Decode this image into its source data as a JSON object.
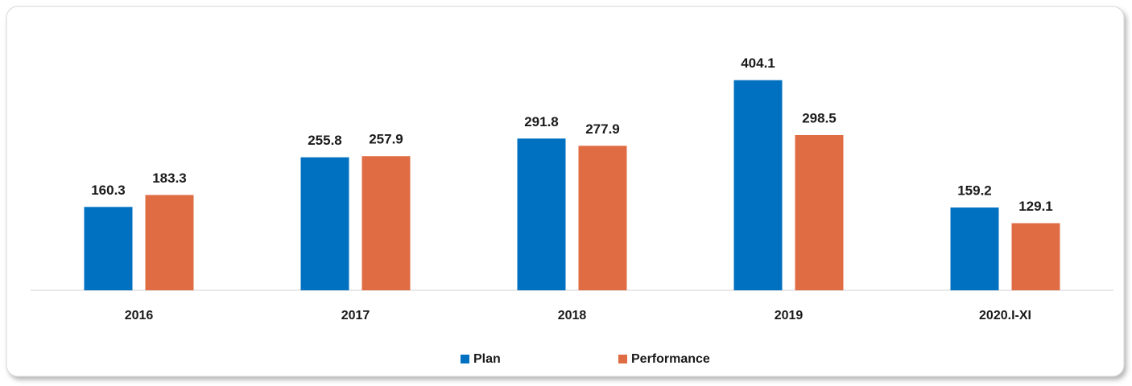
{
  "chart_data": {
    "type": "bar",
    "categories": [
      "2016",
      "2017",
      "2018",
      "2019",
      "2020.I-XI"
    ],
    "series": [
      {
        "name": "Plan",
        "color": "#0070c0",
        "values": [
          160.3,
          255.8,
          291.8,
          404.1,
          159.2
        ]
      },
      {
        "name": "Performance",
        "color": "#e06c43",
        "values": [
          183.3,
          257.9,
          277.9,
          298.5,
          129.1
        ]
      }
    ],
    "ylim": [
      0,
      450
    ],
    "legend": "bottom"
  }
}
